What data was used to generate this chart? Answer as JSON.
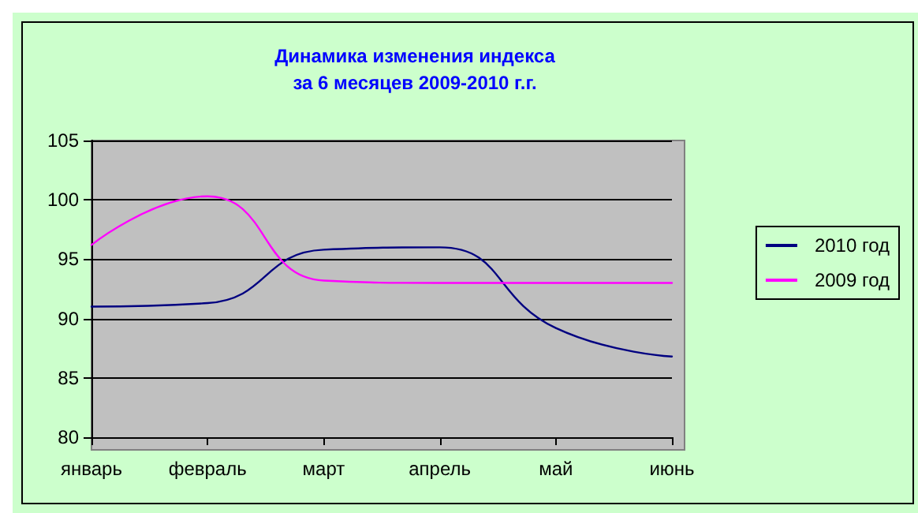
{
  "chart_data": {
    "type": "line",
    "title": "Динамика изменения индекса\nза 6 месяцев 2009-2010 г.г.",
    "categories": [
      "январь",
      "февраль",
      "март",
      "апрель",
      "май",
      "июнь"
    ],
    "series": [
      {
        "name": "2010 год",
        "color": "#000080",
        "values": [
          91,
          91.3,
          95.8,
          96,
          89.2,
          86.8
        ]
      },
      {
        "name": "2009 год",
        "color": "#ff00ff",
        "values": [
          96.2,
          100.3,
          93.2,
          93,
          93,
          93
        ]
      }
    ],
    "ylim": [
      80,
      105
    ],
    "yticks": [
      80,
      85,
      90,
      95,
      100,
      105
    ],
    "grid": "y",
    "legend": "right",
    "marker": "none"
  }
}
